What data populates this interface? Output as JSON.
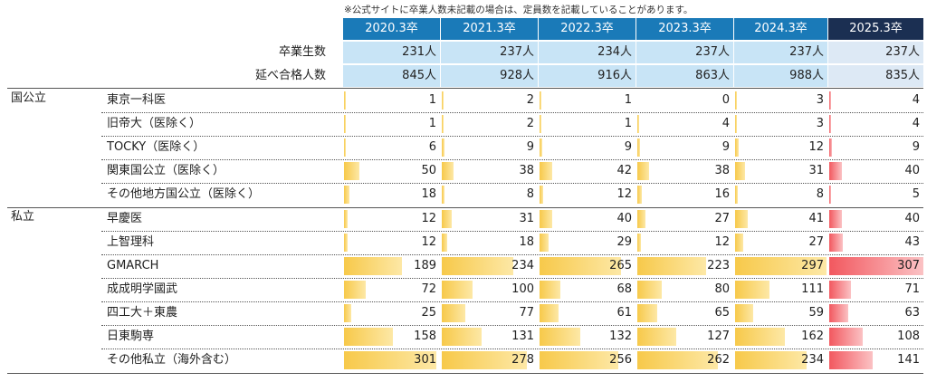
{
  "note": "※公式サイトに卒業人数未記載の場合は、定員数を記載していることがあります。",
  "labels": {
    "graduates": "卒業生数",
    "passes": "延べ合格人数"
  },
  "groups": [
    "国公立",
    "私立"
  ],
  "chart_data": {
    "type": "table",
    "years": [
      "2020.3卒",
      "2021.3卒",
      "2022.3卒",
      "2023.3卒",
      "2024.3卒",
      "2025.3卒"
    ],
    "graduates": [
      "231人",
      "237人",
      "234人",
      "237人",
      "237人",
      "237人"
    ],
    "passes": [
      "845人",
      "928人",
      "916人",
      "863人",
      "988人",
      "835人"
    ],
    "rows": [
      {
        "group": "国公立",
        "category": "東京一科医",
        "values": [
          1,
          2,
          1,
          0,
          3,
          4
        ]
      },
      {
        "group": "国公立",
        "category": "旧帝大（医除く）",
        "values": [
          1,
          2,
          1,
          4,
          3,
          4
        ]
      },
      {
        "group": "国公立",
        "category": "TOCKY（医除く）",
        "values": [
          6,
          9,
          9,
          9,
          12,
          9
        ]
      },
      {
        "group": "国公立",
        "category": "関東国公立（医除く）",
        "values": [
          50,
          38,
          42,
          38,
          31,
          40
        ]
      },
      {
        "group": "国公立",
        "category": "その他地方国公立（医除く）",
        "values": [
          18,
          8,
          12,
          16,
          8,
          5
        ]
      },
      {
        "group": "私立",
        "category": "早慶医",
        "values": [
          12,
          31,
          40,
          27,
          41,
          40
        ]
      },
      {
        "group": "私立",
        "category": "上智理科",
        "values": [
          12,
          18,
          29,
          12,
          27,
          43
        ]
      },
      {
        "group": "私立",
        "category": "GMARCH",
        "values": [
          189,
          234,
          265,
          223,
          297,
          307
        ]
      },
      {
        "group": "私立",
        "category": "成成明学國武",
        "values": [
          72,
          100,
          68,
          80,
          111,
          71
        ]
      },
      {
        "group": "私立",
        "category": "四工大＋東農",
        "values": [
          25,
          77,
          61,
          65,
          59,
          63
        ]
      },
      {
        "group": "私立",
        "category": "日東駒専",
        "values": [
          158,
          131,
          132,
          127,
          162,
          108
        ]
      },
      {
        "group": "私立",
        "category": "その他私立（海外含む）",
        "values": [
          301,
          278,
          256,
          262,
          234,
          141
        ]
      }
    ],
    "bar_max": 307,
    "colors": {
      "header": "#1a7ab8",
      "header_last": "#1b2f52",
      "bar": "#f7c94a",
      "bar_last": "#f2585f",
      "summary": "#c8e4f6"
    }
  }
}
